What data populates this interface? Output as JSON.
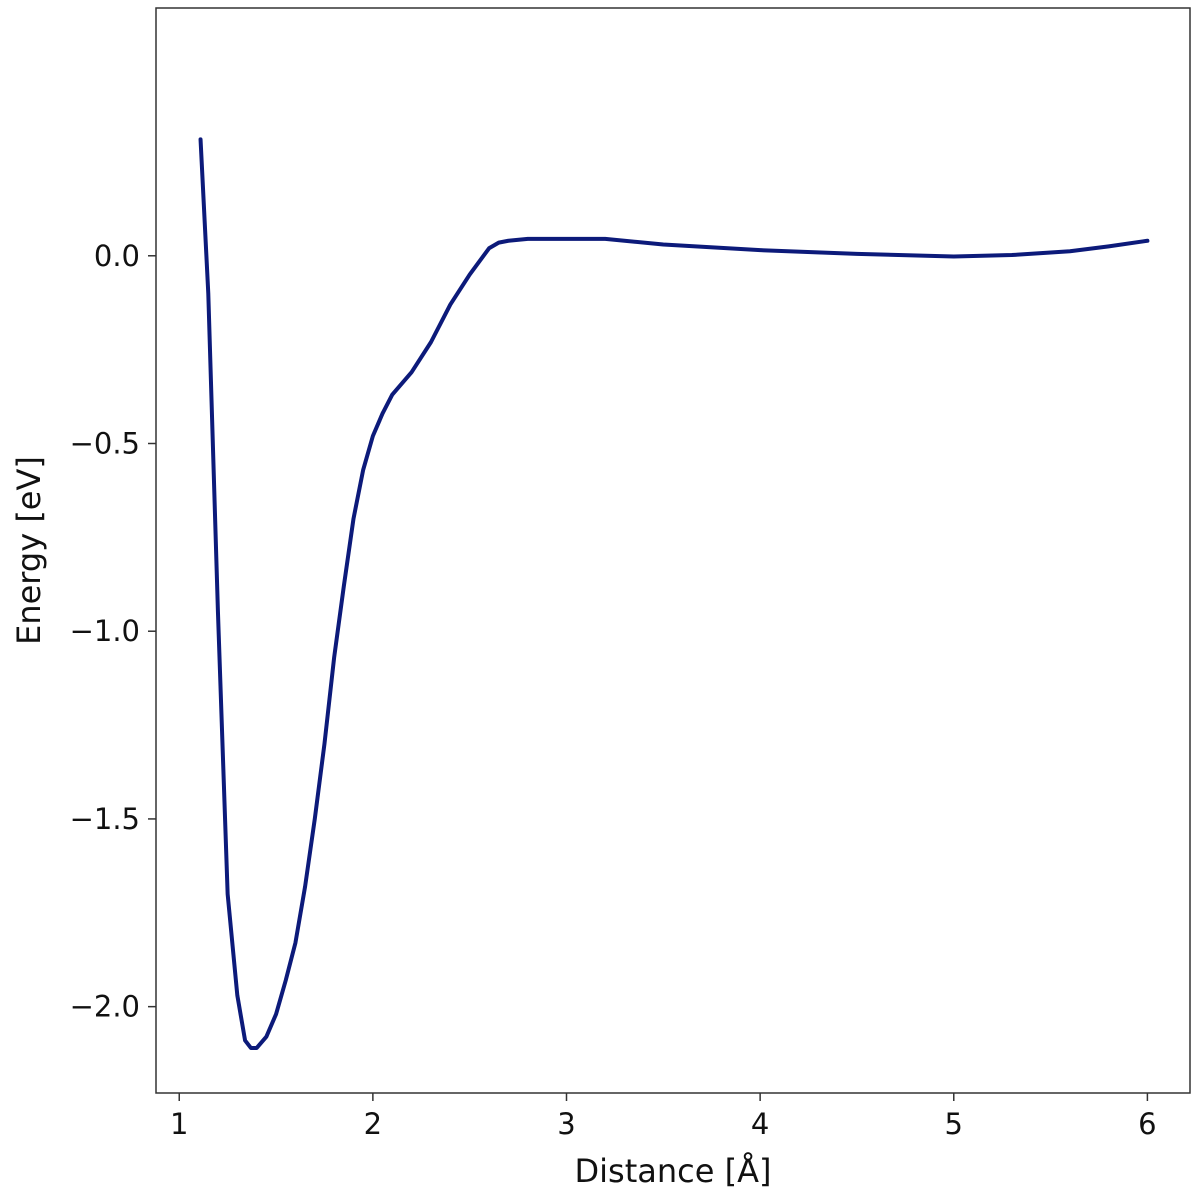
{
  "chart_data": {
    "type": "line",
    "title": "",
    "xlabel": "Distance [Å]",
    "ylabel": "Energy [eV]",
    "xlim": [
      0.88,
      6.22
    ],
    "ylim": [
      -2.23,
      0.66
    ],
    "x_ticks": [
      1,
      2,
      3,
      4,
      5,
      6
    ],
    "x_tick_labels": [
      "1",
      "2",
      "3",
      "4",
      "5",
      "6"
    ],
    "y_ticks": [
      -2.0,
      -1.5,
      -1.0,
      -0.5,
      0.0
    ],
    "y_tick_labels": [
      "−2.0",
      "−1.5",
      "−1.0",
      "−0.5",
      "0.0"
    ],
    "grid": false,
    "legend": "none",
    "series": [
      {
        "color": "#0c1a7a",
        "x": [
          1.11,
          1.15,
          1.2,
          1.25,
          1.3,
          1.34,
          1.37,
          1.4,
          1.45,
          1.5,
          1.55,
          1.6,
          1.65,
          1.7,
          1.75,
          1.8,
          1.85,
          1.9,
          1.95,
          2.0,
          2.05,
          2.1,
          2.2,
          2.3,
          2.4,
          2.5,
          2.6,
          2.65,
          2.7,
          2.8,
          3.0,
          3.2,
          3.5,
          4.0,
          4.5,
          5.0,
          5.3,
          5.6,
          5.8,
          6.0
        ],
        "y": [
          0.31,
          -0.1,
          -0.95,
          -1.7,
          -1.97,
          -2.09,
          -2.11,
          -2.11,
          -2.08,
          -2.02,
          -1.93,
          -1.83,
          -1.68,
          -1.5,
          -1.3,
          -1.07,
          -0.88,
          -0.7,
          -0.57,
          -0.48,
          -0.42,
          -0.37,
          -0.31,
          -0.23,
          -0.13,
          -0.05,
          0.02,
          0.035,
          0.04,
          0.045,
          0.045,
          0.045,
          0.03,
          0.015,
          0.005,
          -0.002,
          0.002,
          0.012,
          0.025,
          0.04
        ]
      }
    ]
  }
}
